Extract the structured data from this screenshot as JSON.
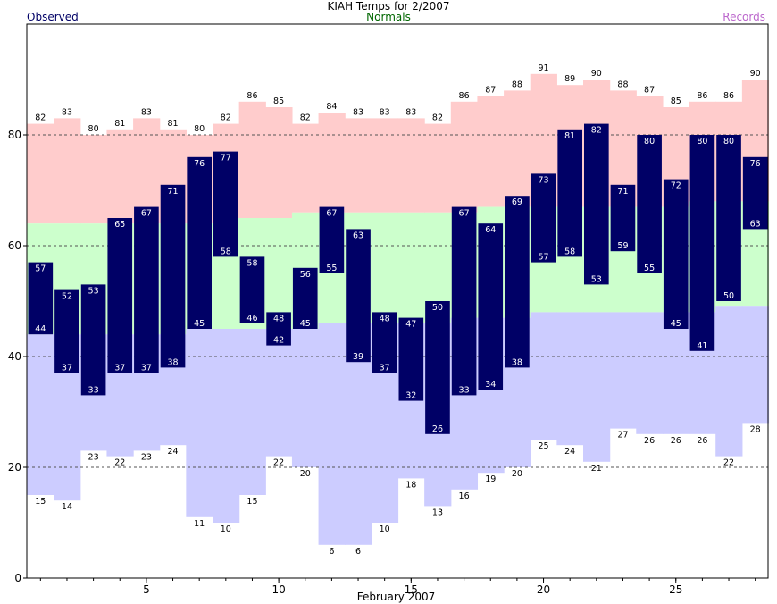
{
  "chart_data": {
    "type": "bar",
    "title": "KIAH Temps for 2/2007",
    "subtitle": "Normals",
    "xlabel": "February 2007",
    "legend": {
      "left": "Observed",
      "right": "Records"
    },
    "ylim": [
      0,
      100
    ],
    "y_ticks": [
      0,
      20,
      40,
      60,
      80
    ],
    "x_ticks": [
      5,
      10,
      15,
      20,
      25
    ],
    "days": [
      1,
      2,
      3,
      4,
      5,
      6,
      7,
      8,
      9,
      10,
      11,
      12,
      13,
      14,
      15,
      16,
      17,
      18,
      19,
      20,
      21,
      22,
      23,
      24,
      25,
      26,
      27,
      28
    ],
    "series": [
      {
        "name": "Observed",
        "high": [
          57,
          52,
          53,
          65,
          67,
          71,
          76,
          77,
          58,
          48,
          56,
          67,
          63,
          48,
          47,
          50,
          67,
          64,
          69,
          73,
          81,
          82,
          71,
          80,
          72,
          80,
          80,
          76
        ],
        "low": [
          44,
          37,
          33,
          37,
          37,
          38,
          45,
          58,
          46,
          42,
          45,
          55,
          39,
          37,
          32,
          26,
          33,
          34,
          38,
          57,
          58,
          53,
          59,
          55,
          45,
          41,
          50,
          63
        ]
      },
      {
        "name": "Normals",
        "high": [
          64,
          64,
          64,
          64,
          64,
          64,
          64,
          65,
          65,
          65,
          66,
          66,
          66,
          66,
          66,
          66,
          66,
          67,
          67,
          67,
          67,
          67,
          67,
          67,
          67,
          68,
          68,
          68
        ],
        "low": [
          44,
          44,
          44,
          44,
          44,
          44,
          45,
          45,
          45,
          45,
          45,
          46,
          46,
          46,
          46,
          46,
          47,
          47,
          47,
          48,
          48,
          48,
          48,
          48,
          48,
          48,
          49,
          49
        ]
      },
      {
        "name": "Records",
        "high": [
          82,
          83,
          80,
          81,
          83,
          81,
          80,
          82,
          86,
          85,
          82,
          84,
          83,
          83,
          83,
          82,
          86,
          87,
          88,
          91,
          89,
          90,
          88,
          87,
          85,
          86,
          86,
          90
        ],
        "low": [
          15,
          14,
          23,
          22,
          23,
          24,
          11,
          10,
          15,
          22,
          20,
          6,
          6,
          10,
          18,
          13,
          16,
          19,
          20,
          25,
          24,
          21,
          27,
          26,
          26,
          26,
          22,
          28
        ]
      }
    ],
    "colors": {
      "observed": "#000066",
      "record_high_band": "#ffcccc",
      "normal_band": "#ccffcc",
      "record_low_band": "#ccccff",
      "normals_text": "#006600",
      "records_text": "#bb66cc"
    },
    "grid": "dashed at 20, 40, 60, 80"
  }
}
